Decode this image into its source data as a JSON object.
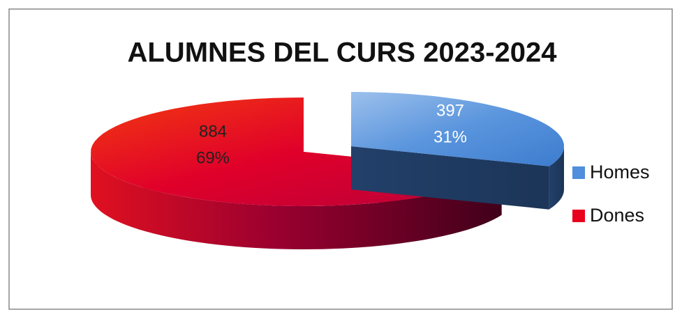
{
  "chart_data": {
    "type": "pie",
    "title": "ALUMNES DEL CURS 2023-2024",
    "categories": [
      "Homes",
      "Dones"
    ],
    "values": [
      397,
      884
    ],
    "percentages": [
      31,
      69
    ],
    "percentage_labels": [
      "31%",
      "69%"
    ],
    "colors": [
      "#4f8fdc",
      "#e8001c"
    ],
    "legend": "right"
  }
}
